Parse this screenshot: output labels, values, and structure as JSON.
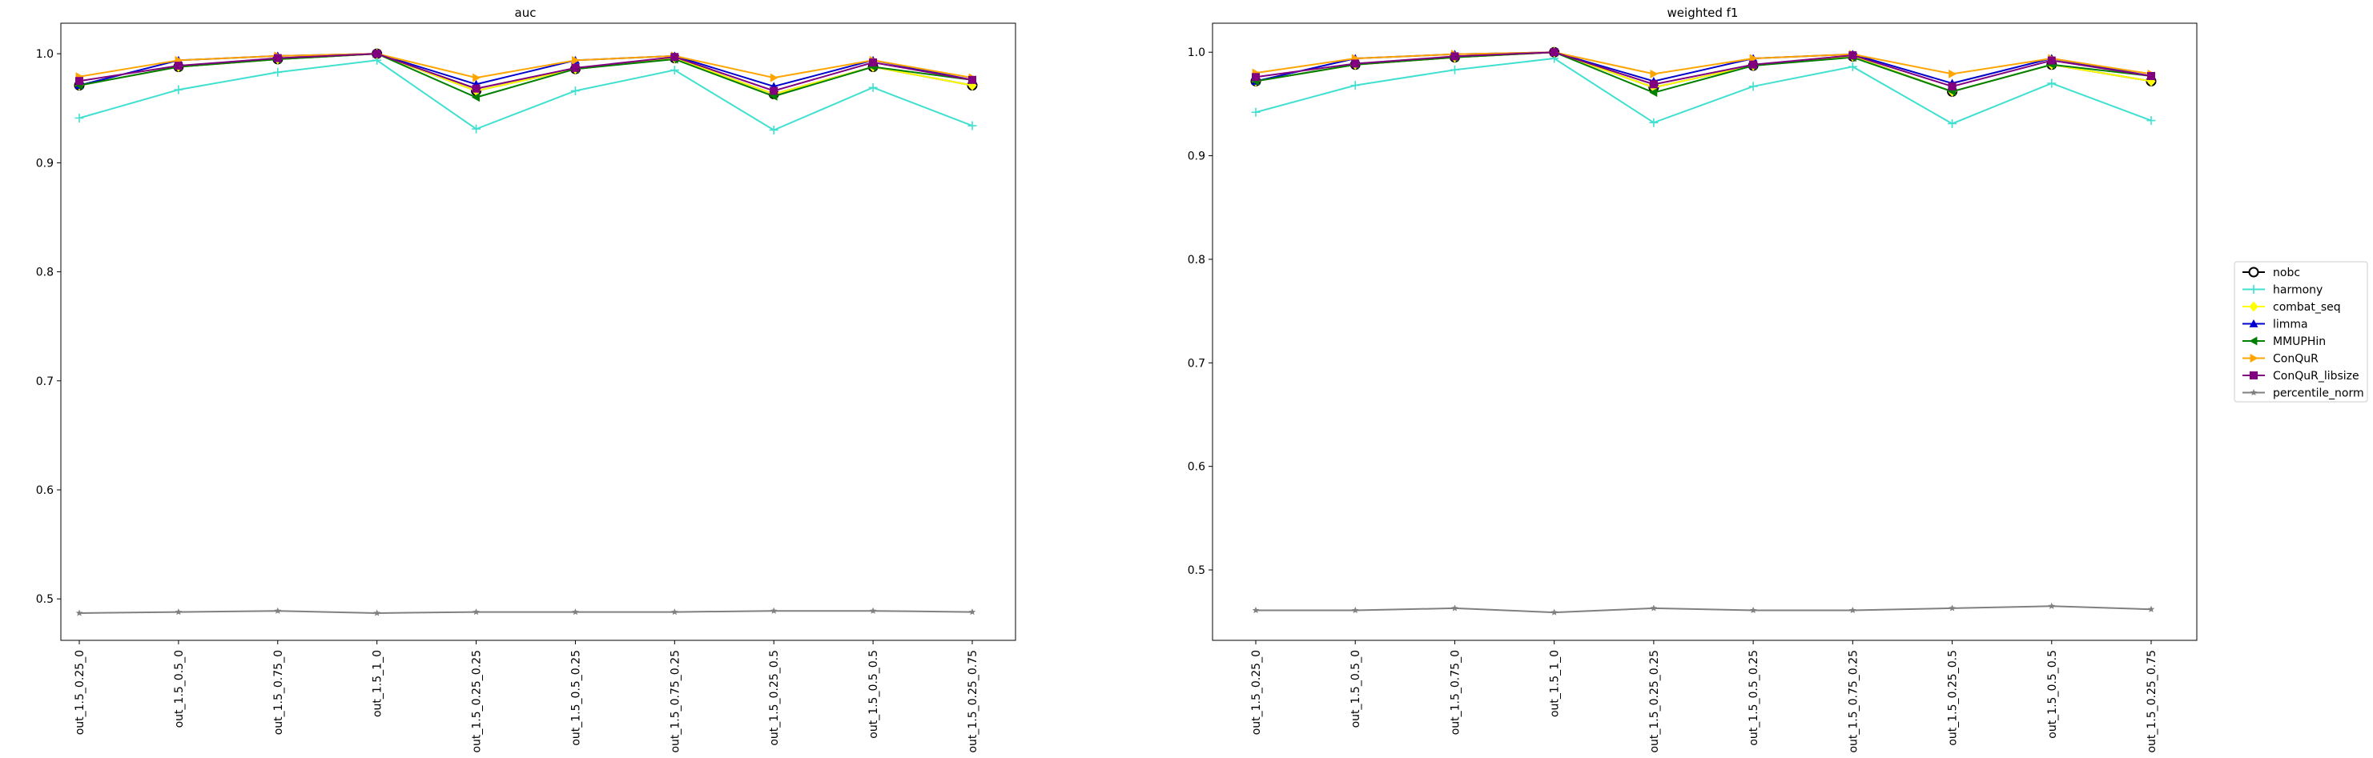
{
  "chart_data": [
    {
      "type": "line",
      "title": "auc",
      "xlabel": "",
      "ylabel": "",
      "grid": false,
      "categories": [
        "out_1.5_0.25_0",
        "out_1.5_0.5_0",
        "out_1.5_0.75_0",
        "out_1.5_1_0",
        "out_1.5_0.25_0.25",
        "out_1.5_0.5_0.25",
        "out_1.5_0.75_0.25",
        "out_1.5_0.25_0.5",
        "out_1.5_0.5_0.5",
        "out_1.5_0.25_0.75"
      ],
      "ylim": [
        0.462,
        1.028
      ],
      "yticks": [
        "0.5",
        "0.6",
        "0.7",
        "0.8",
        "0.9",
        "1.0"
      ],
      "series": [
        {
          "name": "nobc",
          "color": "#000000",
          "marker": "circle-open",
          "values": [
            0.971,
            0.988,
            0.995,
            1.0,
            0.966,
            0.986,
            0.996,
            0.963,
            0.988,
            0.971
          ]
        },
        {
          "name": "harmony",
          "color": "#40e0d0",
          "marker": "plus",
          "values": [
            0.941,
            0.967,
            0.983,
            0.994,
            0.931,
            0.966,
            0.985,
            0.93,
            0.969,
            0.934
          ]
        },
        {
          "name": "combat_seq",
          "color": "#ffff00",
          "marker": "diamond",
          "values": [
            0.971,
            0.988,
            0.995,
            1.0,
            0.966,
            0.986,
            0.996,
            0.963,
            0.988,
            0.971
          ]
        },
        {
          "name": "limma",
          "color": "#0000cd",
          "marker": "triangle-up",
          "values": [
            0.971,
            0.994,
            0.998,
            1.0,
            0.972,
            0.994,
            0.998,
            0.97,
            0.994,
            0.976
          ]
        },
        {
          "name": "MMUPHin",
          "color": "#008000",
          "marker": "triangle-left",
          "values": [
            0.971,
            0.988,
            0.995,
            1.0,
            0.96,
            0.986,
            0.995,
            0.961,
            0.988,
            0.976
          ]
        },
        {
          "name": "ConQuR",
          "color": "#ffa500",
          "marker": "triangle-right",
          "values": [
            0.979,
            0.994,
            0.998,
            1.0,
            0.978,
            0.994,
            0.998,
            0.978,
            0.994,
            0.978
          ]
        },
        {
          "name": "ConQuR_libsize",
          "color": "#800080",
          "marker": "square",
          "values": [
            0.975,
            0.989,
            0.996,
            1.0,
            0.968,
            0.987,
            0.997,
            0.966,
            0.992,
            0.976
          ]
        },
        {
          "name": "percentile_norm",
          "color": "#808080",
          "marker": "star",
          "values": [
            0.487,
            0.488,
            0.489,
            0.487,
            0.488,
            0.488,
            0.488,
            0.489,
            0.489,
            0.488
          ]
        }
      ]
    },
    {
      "type": "line",
      "title": "weighted f1",
      "xlabel": "",
      "ylabel": "",
      "grid": false,
      "categories": [
        "out_1.5_0.25_0",
        "out_1.5_0.5_0",
        "out_1.5_0.75_0",
        "out_1.5_1_0",
        "out_1.5_0.25_0.25",
        "out_1.5_0.5_0.25",
        "out_1.5_0.75_0.25",
        "out_1.5_0.25_0.5",
        "out_1.5_0.5_0.5",
        "out_1.5_0.25_0.75"
      ],
      "ylim": [
        0.432,
        1.028
      ],
      "yticks": [
        "0.5",
        "0.6",
        "0.7",
        "0.8",
        "0.9",
        "1.0"
      ],
      "series": [
        {
          "name": "nobc",
          "color": "#000000",
          "marker": "circle-open",
          "values": [
            0.972,
            0.988,
            0.995,
            1.0,
            0.966,
            0.987,
            0.996,
            0.962,
            0.988,
            0.972
          ]
        },
        {
          "name": "harmony",
          "color": "#40e0d0",
          "marker": "plus",
          "values": [
            0.942,
            0.968,
            0.983,
            0.994,
            0.932,
            0.967,
            0.986,
            0.931,
            0.97,
            0.934
          ]
        },
        {
          "name": "combat_seq",
          "color": "#ffff00",
          "marker": "diamond",
          "values": [
            0.972,
            0.988,
            0.995,
            1.0,
            0.966,
            0.987,
            0.996,
            0.962,
            0.988,
            0.972
          ]
        },
        {
          "name": "limma",
          "color": "#0000cd",
          "marker": "triangle-up",
          "values": [
            0.972,
            0.994,
            0.998,
            1.0,
            0.972,
            0.994,
            0.998,
            0.97,
            0.994,
            0.977
          ]
        },
        {
          "name": "MMUPHin",
          "color": "#008000",
          "marker": "triangle-left",
          "values": [
            0.972,
            0.988,
            0.995,
            1.0,
            0.961,
            0.987,
            0.995,
            0.962,
            0.988,
            0.977
          ]
        },
        {
          "name": "ConQuR",
          "color": "#ffa500",
          "marker": "triangle-right",
          "values": [
            0.98,
            0.994,
            0.998,
            1.0,
            0.979,
            0.994,
            0.998,
            0.979,
            0.994,
            0.979
          ]
        },
        {
          "name": "ConQuR_libsize",
          "color": "#800080",
          "marker": "square",
          "values": [
            0.976,
            0.989,
            0.996,
            1.0,
            0.969,
            0.988,
            0.997,
            0.967,
            0.992,
            0.977
          ]
        },
        {
          "name": "percentile_norm",
          "color": "#808080",
          "marker": "star",
          "values": [
            0.461,
            0.461,
            0.463,
            0.459,
            0.463,
            0.461,
            0.461,
            0.463,
            0.465,
            0.462
          ]
        }
      ]
    }
  ],
  "legend": {
    "placement": "center-right",
    "entries": [
      "nobc",
      "harmony",
      "combat_seq",
      "limma",
      "MMUPHin",
      "ConQuR",
      "ConQuR_libsize",
      "percentile_norm"
    ]
  }
}
